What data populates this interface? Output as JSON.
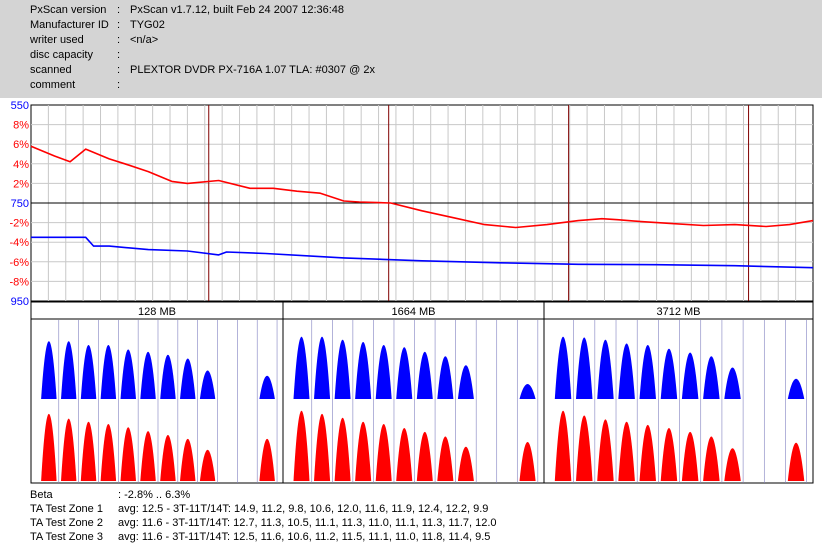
{
  "header": {
    "rows": [
      {
        "label": "PxScan version",
        "value": "PxScan v1.7.12, built Feb 24 2007 12:36:48"
      },
      {
        "label": "Manufacturer ID",
        "value": "TYG02"
      },
      {
        "label": "writer used",
        "value": "<n/a>"
      },
      {
        "label": "disc capacity",
        "value": ""
      },
      {
        "label": "scanned",
        "value": "PLEXTOR DVDR PX-716A 1.07 TLA: #0307 @ 2x"
      },
      {
        "label": "comment",
        "value": ""
      }
    ],
    "colon": ":"
  },
  "chart_data": {
    "type": "line",
    "y_tick_labels": [
      {
        "text": "550",
        "color": "#0000ff"
      },
      {
        "text": "8%",
        "color": "#ff0000"
      },
      {
        "text": "6%",
        "color": "#ff0000"
      },
      {
        "text": "4%",
        "color": "#ff0000"
      },
      {
        "text": "2%",
        "color": "#ff0000"
      },
      {
        "text": "750",
        "color": "#0000ff"
      },
      {
        "text": "-2%",
        "color": "#ff0000"
      },
      {
        "text": "-4%",
        "color": "#ff0000"
      },
      {
        "text": "-6%",
        "color": "#ff0000"
      },
      {
        "text": "-8%",
        "color": "#ff0000"
      },
      {
        "text": "950",
        "color": "#0000ff"
      }
    ],
    "red_ylim": [
      -10,
      10
    ],
    "blue_ylim": [
      550,
      950
    ],
    "x_range_percent": [
      0,
      100
    ],
    "series": [
      {
        "color": "#ff0000",
        "x": [
          0,
          3,
          5,
          7,
          10,
          12,
          15,
          18,
          20,
          24,
          28,
          31,
          34,
          37,
          40,
          42,
          46,
          50,
          54,
          58,
          62,
          66,
          70,
          73,
          75,
          78,
          82,
          86,
          90,
          94,
          97,
          100
        ],
        "y": [
          5.8,
          4.8,
          4.2,
          5.5,
          4.5,
          4.0,
          3.2,
          2.2,
          2.0,
          2.3,
          1.5,
          1.5,
          1.2,
          1.0,
          0.2,
          0.1,
          0.0,
          -0.8,
          -1.5,
          -2.2,
          -2.5,
          -2.2,
          -1.8,
          -1.6,
          -1.7,
          -1.9,
          -2.1,
          -2.3,
          -2.2,
          -2.4,
          -2.2,
          -1.8
        ]
      },
      {
        "color": "#0000ff",
        "x": [
          0,
          4,
          7,
          8,
          10,
          15,
          20,
          24,
          25,
          30,
          40,
          50,
          60,
          70,
          80,
          90,
          100
        ],
        "y": [
          820,
          820,
          820,
          838,
          838,
          845,
          848,
          856,
          850,
          853,
          862,
          868,
          872,
          875,
          876,
          878,
          882
        ]
      }
    ],
    "zone_labels": [
      "128 MB",
      "1664 MB",
      "3712 MB"
    ],
    "zones": [
      {
        "blue": [
          0.77,
          0.77,
          0.72,
          0.72,
          0.66,
          0.63,
          0.59,
          0.54,
          0.38,
          0.0,
          0.0,
          0.31
        ],
        "red": [
          0.86,
          0.8,
          0.76,
          0.73,
          0.69,
          0.64,
          0.59,
          0.54,
          0.4,
          0.0,
          0.0,
          0.54
        ]
      },
      {
        "blue": [
          0.83,
          0.83,
          0.79,
          0.76,
          0.72,
          0.69,
          0.63,
          0.57,
          0.45,
          0.0,
          0.0,
          0.2
        ],
        "red": [
          0.9,
          0.86,
          0.81,
          0.76,
          0.73,
          0.68,
          0.63,
          0.57,
          0.44,
          0.0,
          0.0,
          0.5
        ]
      },
      {
        "blue": [
          0.83,
          0.82,
          0.79,
          0.74,
          0.72,
          0.67,
          0.62,
          0.57,
          0.42,
          0.0,
          0.0,
          0.27
        ],
        "red": [
          0.9,
          0.84,
          0.79,
          0.76,
          0.72,
          0.68,
          0.63,
          0.57,
          0.42,
          0.0,
          0.0,
          0.49
        ]
      }
    ]
  },
  "summary": {
    "rows": [
      {
        "label": "Beta",
        "value": ": -2.8% .. 6.3%"
      },
      {
        "label": "TA Test Zone 1",
        "value": "avg: 12.5 - 3T-11T/14T: 14.9, 11.2, 9.8, 10.6, 12.0, 11.6, 11.9, 12.4, 12.2, 9.9"
      },
      {
        "label": "TA Test Zone 2",
        "value": "avg: 11.6 - 3T-11T/14T: 12.7, 11.3, 10.5, 11.1, 11.3, 11.0, 11.1, 11.3, 11.7, 12.0"
      },
      {
        "label": "TA Test Zone 3",
        "value": "avg: 11.6 - 3T-11T/14T: 12.5, 11.6, 10.6, 11.2, 11.5, 11.1, 11.0, 11.8, 11.4, 9.5"
      }
    ]
  }
}
